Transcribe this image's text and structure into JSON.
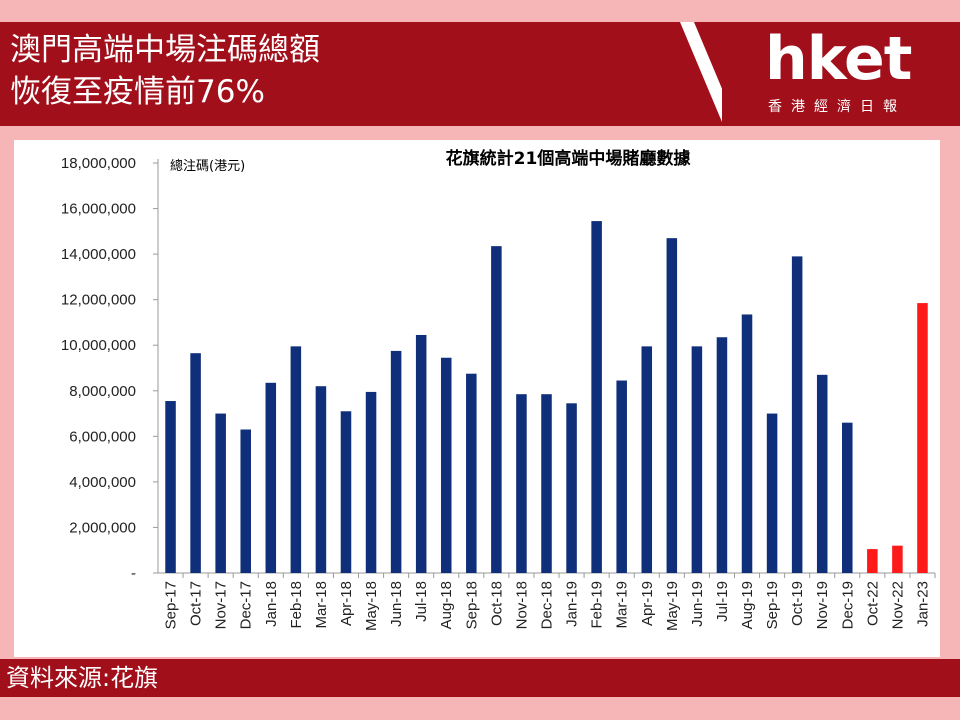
{
  "header": {
    "title_line_1": "澳門高端中場注碼總額",
    "title_line_2": "恢復至疫情前76%",
    "logo_text": "hket",
    "logo_subtitle": "香港經濟日報"
  },
  "footer": {
    "source": "資料來源:花旗"
  },
  "colors": {
    "header_bg": "#a10f1b",
    "page_bg": "#f6b6b8",
    "bar_blue": "#0f2f7a",
    "bar_red": "#ff1a1a"
  },
  "chart_data": {
    "type": "bar",
    "title": "花旗統計21個高端中場賭廳數據",
    "unit_label": "總注碼(港元)",
    "categories": [
      "Sep-17",
      "Oct-17",
      "Nov-17",
      "Dec-17",
      "Jan-18",
      "Feb-18",
      "Mar-18",
      "Apr-18",
      "May-18",
      "Jun-18",
      "Jul-18",
      "Aug-18",
      "Sep-18",
      "Oct-18",
      "Nov-18",
      "Dec-18",
      "Jan-19",
      "Feb-19",
      "Mar-19",
      "Apr-19",
      "May-19",
      "Jun-19",
      "Jul-19",
      "Aug-19",
      "Sep-19",
      "Oct-19",
      "Nov-19",
      "Dec-19",
      "Oct-22",
      "Nov-22",
      "Jan-23"
    ],
    "values": [
      7550000,
      9650000,
      7000000,
      6300000,
      8350000,
      9950000,
      8200000,
      7100000,
      7950000,
      9750000,
      10450000,
      9450000,
      8750000,
      14350000,
      7850000,
      7850000,
      7450000,
      15450000,
      8450000,
      9950000,
      14700000,
      9950000,
      10350000,
      11350000,
      7000000,
      13900000,
      8700000,
      6600000,
      1050000,
      1200000,
      11850000
    ],
    "highlight_categories": [
      "Oct-22",
      "Nov-22",
      "Jan-23"
    ],
    "ylim": [
      0,
      18000000
    ],
    "yticks": [
      0,
      2000000,
      4000000,
      6000000,
      8000000,
      10000000,
      12000000,
      14000000,
      16000000,
      18000000
    ],
    "ytick_labels": [
      "-",
      "2,000,000",
      "4,000,000",
      "6,000,000",
      "8,000,000",
      "10,000,000",
      "12,000,000",
      "14,000,000",
      "16,000,000",
      "18,000,000"
    ],
    "grid": false,
    "legend": "none"
  }
}
